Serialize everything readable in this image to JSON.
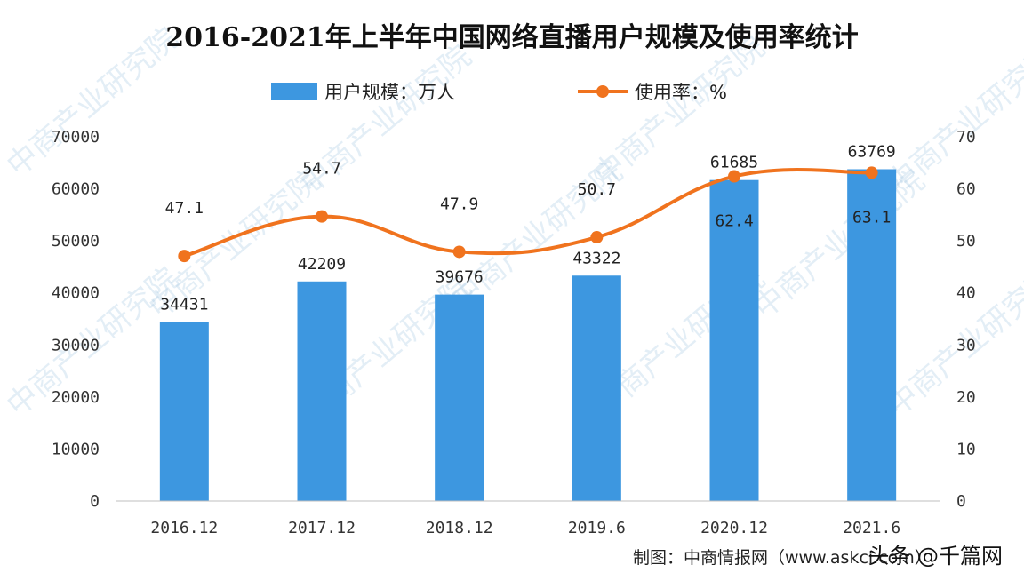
{
  "chart_data": {
    "type": "bar+line",
    "title": "2016-2021年上半年中国网络直播用户规模及使用率统计",
    "categories": [
      "2016.12",
      "2017.12",
      "2018.12",
      "2019.6",
      "2020.12",
      "2021.6"
    ],
    "series": [
      {
        "name": "用户规模：万人",
        "type": "bar",
        "axis": "left",
        "color": "#3d97e0",
        "values": [
          34431,
          42209,
          39676,
          43322,
          61685,
          63769
        ]
      },
      {
        "name": "使用率：%",
        "type": "line",
        "axis": "right",
        "color": "#f0731e",
        "values": [
          47.1,
          54.7,
          47.9,
          50.7,
          62.4,
          63.1
        ]
      }
    ],
    "y_left": {
      "min": 0,
      "max": 70000,
      "ticks": [
        "0",
        "10000",
        "20000",
        "30000",
        "40000",
        "50000",
        "60000",
        "70000"
      ]
    },
    "y_right": {
      "min": 0,
      "max": 70,
      "ticks": [
        "0",
        "10",
        "20",
        "30",
        "40",
        "50",
        "60",
        "70"
      ]
    },
    "grid": false,
    "legend_position": "top"
  },
  "footer": {
    "credit": "制图：中商情报网（www.askci.com）",
    "brand": "头条 @千篇网"
  },
  "watermark": {
    "text": "中商产业研究院",
    "color": "#9ec3e0"
  }
}
